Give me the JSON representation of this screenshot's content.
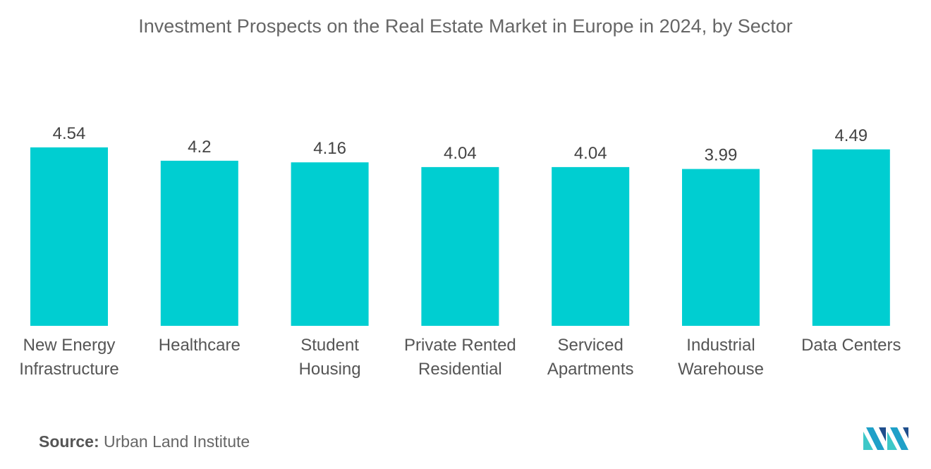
{
  "chart_data": {
    "type": "bar",
    "title": "Investment Prospects on the Real Estate Market in Europe in 2024, by Sector",
    "categories": [
      [
        "New Energy",
        "Infrastructure"
      ],
      [
        "Healthcare"
      ],
      [
        "Student",
        "Housing"
      ],
      [
        "Private Rented",
        "Residential"
      ],
      [
        "Serviced",
        "Apartments"
      ],
      [
        "Industrial",
        "Warehouse"
      ],
      [
        "Data Centers"
      ]
    ],
    "values": [
      4.54,
      4.2,
      4.16,
      4.04,
      4.04,
      3.99,
      4.49
    ],
    "value_labels": [
      "4.54",
      "4.2",
      "4.16",
      "4.04",
      "4.04",
      "3.99",
      "4.49"
    ],
    "xlabel": "",
    "ylabel": "",
    "grid": false,
    "bar_color": "#00CED1"
  },
  "source": {
    "label": "Source:",
    "text": "Urban Land Institute"
  },
  "logo": {
    "icon": "mordor-intelligence-logo-icon",
    "colors": [
      "#1FA0C8",
      "#1F4E8C",
      "#3DC8C8"
    ]
  }
}
